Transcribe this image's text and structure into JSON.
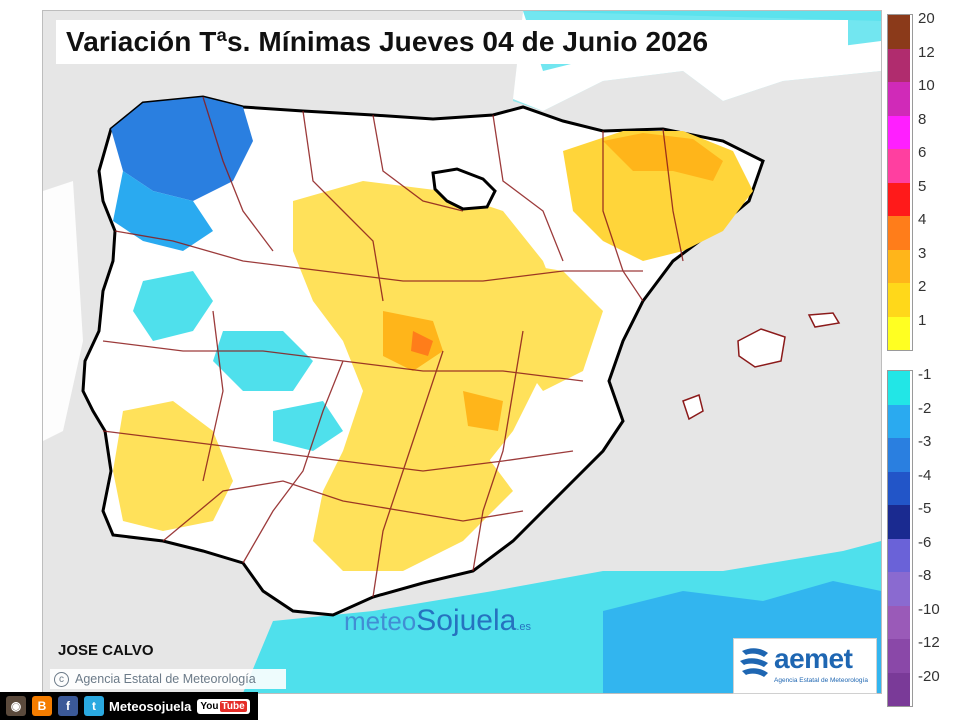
{
  "title": "Variación Tªs. Mínimas Jueves 04 de Junio 2026",
  "author": "JOSE CALVO",
  "copyright": "Agencia Estatal de Meteorología",
  "watermark": {
    "part1": "meteo",
    "part2": "Sojuela",
    "part3": ".es"
  },
  "agency_logo": {
    "name": "aemet",
    "subtitle": "Agencia Estatal de Meteorología"
  },
  "social": {
    "handle": "Meteosojuela",
    "youtube_label": "You",
    "youtube_tube": "Tube"
  },
  "legend_positive": [
    {
      "label": "20",
      "color": "#8b3a1a"
    },
    {
      "label": "12",
      "color": "#b02c6e"
    },
    {
      "label": "10",
      "color": "#d02ab8"
    },
    {
      "label": "8",
      "color": "#ff1fff"
    },
    {
      "label": "6",
      "color": "#ff3fa0"
    },
    {
      "label": "5",
      "color": "#ff1a1a"
    },
    {
      "label": "4",
      "color": "#ff7d1a"
    },
    {
      "label": "3",
      "color": "#ffb51a"
    },
    {
      "label": "2",
      "color": "#ffd81a"
    },
    {
      "label": "1",
      "color": "#ffff22"
    }
  ],
  "legend_negative": [
    {
      "label": "-1",
      "color": "#22e6e6"
    },
    {
      "label": "-2",
      "color": "#2aaaf0"
    },
    {
      "label": "-3",
      "color": "#2a7fe0"
    },
    {
      "label": "-4",
      "color": "#2255c8"
    },
    {
      "label": "-5",
      "color": "#1a2a90"
    },
    {
      "label": "-6",
      "color": "#6a62d8"
    },
    {
      "label": "-8",
      "color": "#8a6ad0"
    },
    {
      "label": "-10",
      "color": "#9a5ab8"
    },
    {
      "label": "-12",
      "color": "#8a48a8"
    },
    {
      "label": "-20",
      "color": "#7a3a98"
    }
  ],
  "colors": {
    "land": "#ffffff",
    "sea": "#e6e6e6",
    "warm": "#ffe15a",
    "warm_strong": "#ffc02a",
    "cold": "#4fe0ec",
    "cold_strong": "#3a7fe0",
    "borders": "#8b1a1a",
    "la_rioja_outline": "#000000"
  }
}
